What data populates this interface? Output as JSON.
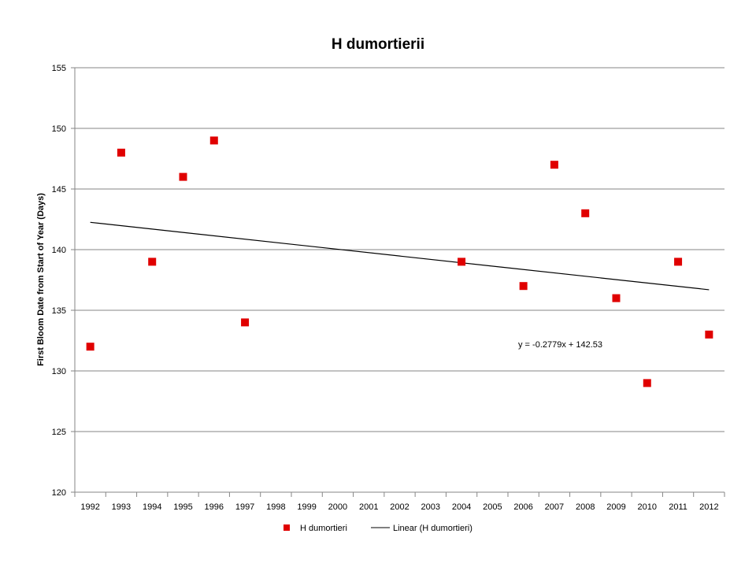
{
  "chart_data": {
    "type": "scatter",
    "title": "H dumortierii",
    "xlabel": "",
    "ylabel": "First Bloom Date from Start of Year (Days)",
    "categories": [
      "1992",
      "1993",
      "1994",
      "1995",
      "1996",
      "1997",
      "1998",
      "1999",
      "2000",
      "2001",
      "2002",
      "2003",
      "2004",
      "2005",
      "2006",
      "2007",
      "2008",
      "2009",
      "2010",
      "2011",
      "2012"
    ],
    "ylim": [
      120,
      155
    ],
    "yticks": [
      120,
      125,
      130,
      135,
      140,
      145,
      150,
      155
    ],
    "grid": true,
    "legend_position": "bottom",
    "series": [
      {
        "name": "H dumortieri",
        "color": "#e00000",
        "marker": "square",
        "values": [
          132,
          148,
          139,
          146,
          149,
          134,
          null,
          null,
          null,
          null,
          null,
          null,
          139,
          null,
          137,
          147,
          143,
          136,
          129,
          139,
          133
        ]
      }
    ],
    "trendline": {
      "name": "Linear (H dumortieri)",
      "color": "#000000",
      "slope": -0.2779,
      "intercept": 142.53,
      "equation": "y = -0.2779x + 142.53"
    }
  }
}
